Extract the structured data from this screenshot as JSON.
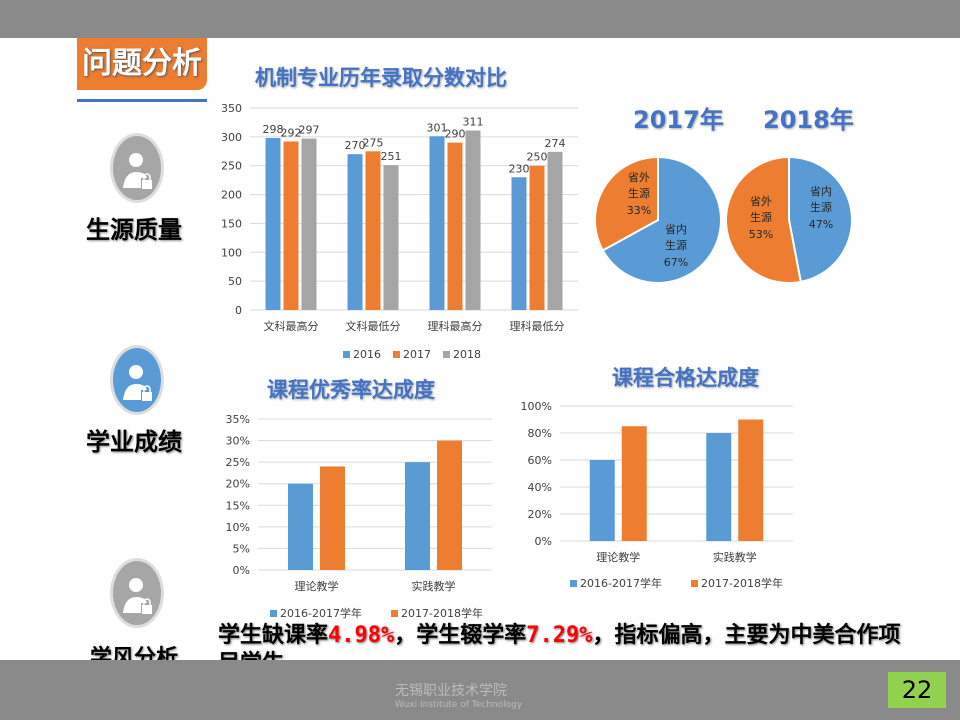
{
  "section_tag": "问题分析",
  "side_labels": [
    "生源质量",
    "学业成绩",
    "学风分析"
  ],
  "summary": {
    "p1": "学生缺课率",
    "v1": "4.98%",
    "p2": "，学生辍学率",
    "v2": "7.29%",
    "p3": "，指标偏高，主要为中美合作项目学生。"
  },
  "footer": {
    "logo_cn": "无锡职业技术学院",
    "logo_en": "Wuxi Institute of Technology",
    "page_number": "22"
  },
  "colors": {
    "blue": "#5b9bd5",
    "orange": "#ed7d31",
    "gray": "#a5a5a5",
    "title": "#4472c4",
    "accent": "#ed7d31",
    "page_box": "#92d050"
  },
  "chart_data": [
    {
      "type": "bar",
      "title": "机制专业历年录取分数对比",
      "categories": [
        "文科最高分",
        "文科最低分",
        "理科最高分",
        "理科最低分"
      ],
      "series": [
        {
          "name": "2016",
          "values": [
            298,
            270,
            301,
            230
          ]
        },
        {
          "name": "2017",
          "values": [
            292,
            275,
            290,
            250
          ]
        },
        {
          "name": "2018",
          "values": [
            297,
            251,
            311,
            274
          ]
        }
      ],
      "ylim": [
        0,
        350
      ],
      "yticks": [
        "0",
        "50",
        "100",
        "150",
        "200",
        "250",
        "300",
        "350"
      ],
      "grid": true,
      "legend": "bottom",
      "data_labels": true
    },
    {
      "type": "pie",
      "title": "2017年",
      "slices": [
        {
          "label": "省内生源",
          "value": 67
        },
        {
          "label": "省外生源",
          "value": 33
        }
      ]
    },
    {
      "type": "pie",
      "title": "2018年",
      "slices": [
        {
          "label": "省内生源",
          "value": 47
        },
        {
          "label": "省外生源",
          "value": 53
        }
      ]
    },
    {
      "type": "bar",
      "title": "课程优秀率达成度",
      "categories": [
        "理论教学",
        "实践教学"
      ],
      "series": [
        {
          "name": "2016-2017学年",
          "values": [
            20,
            25
          ]
        },
        {
          "name": "2017-2018学年",
          "values": [
            24,
            30
          ]
        }
      ],
      "ylim": [
        0,
        35
      ],
      "yticks": [
        "0%",
        "5%",
        "10%",
        "15%",
        "20%",
        "25%",
        "30%",
        "35%"
      ],
      "grid": true,
      "legend": "bottom"
    },
    {
      "type": "bar",
      "title": "课程合格达成度",
      "categories": [
        "理论教学",
        "实践教学"
      ],
      "series": [
        {
          "name": "2016-2017学年",
          "values": [
            60,
            80
          ]
        },
        {
          "name": "2017-2018学年",
          "values": [
            85,
            90
          ]
        }
      ],
      "ylim": [
        0,
        100
      ],
      "yticks": [
        "0%",
        "20%",
        "40%",
        "60%",
        "80%",
        "100%"
      ],
      "grid": true,
      "legend": "bottom"
    }
  ]
}
